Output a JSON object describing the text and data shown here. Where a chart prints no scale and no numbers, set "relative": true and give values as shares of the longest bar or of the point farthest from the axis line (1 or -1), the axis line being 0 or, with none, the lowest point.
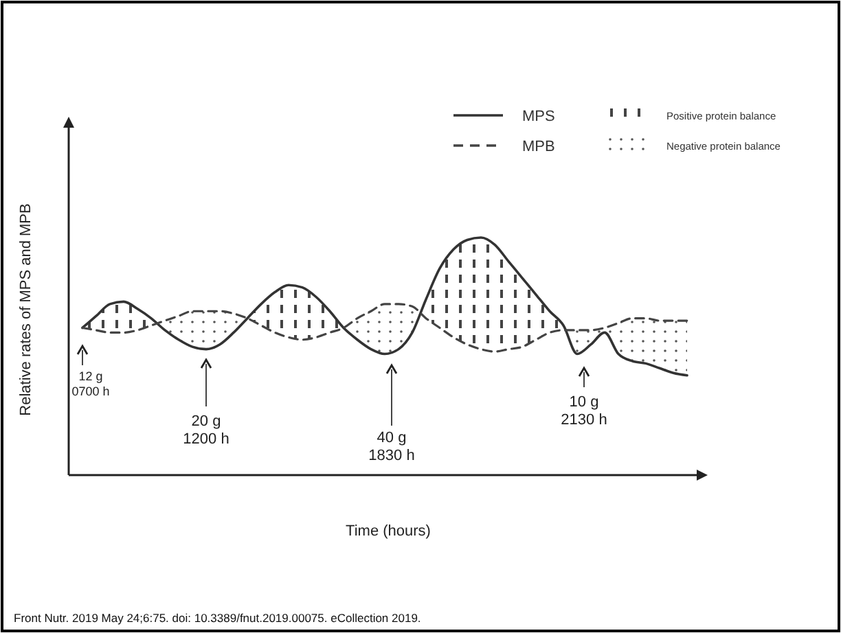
{
  "chart_data": {
    "type": "line",
    "relative": true,
    "xlabel": "Time (hours)",
    "ylabel": "Relative rates of MPS and MPB",
    "legend": "top right",
    "grid": false,
    "marker": "none",
    "categories": [
      null,
      null,
      null,
      null,
      null,
      null,
      null,
      null,
      null,
      null,
      null,
      null,
      null,
      null,
      null,
      null,
      null,
      null,
      null,
      null,
      null,
      null,
      null,
      null,
      null,
      null,
      null,
      null,
      null,
      null,
      null,
      null,
      null,
      null,
      null,
      null,
      null,
      null,
      null,
      null,
      null,
      null,
      null,
      null,
      null
    ],
    "series": [
      {
        "name": "MPS",
        "color": "#333333",
        "line_style": "solid",
        "values": [
          0.62,
          0.67,
          0.72,
          0.73,
          0.7,
          0.66,
          0.61,
          0.57,
          0.54,
          0.53,
          0.55,
          0.6,
          0.66,
          0.72,
          0.77,
          0.8,
          0.79,
          0.75,
          0.69,
          0.62,
          0.57,
          0.53,
          0.51,
          0.53,
          0.6,
          0.74,
          0.87,
          0.95,
          0.99,
          1,
          0.97,
          0.9,
          0.83,
          0.76,
          0.69,
          0.63,
          0.51,
          0.55,
          0.6,
          0.51,
          0.48,
          0.47,
          0.45,
          0.43,
          0.42
        ]
      },
      {
        "name": "MPB",
        "color": "#444444",
        "line_style": "dashed",
        "values": [
          0.62,
          0.61,
          0.6,
          0.6,
          0.61,
          0.63,
          0.65,
          0.67,
          0.69,
          0.69,
          0.69,
          0.68,
          0.66,
          0.63,
          0.6,
          0.58,
          0.57,
          0.58,
          0.6,
          0.62,
          0.66,
          0.69,
          0.72,
          0.72,
          0.71,
          0.66,
          0.62,
          0.58,
          0.55,
          0.53,
          0.52,
          0.53,
          0.54,
          0.57,
          0.6,
          0.61,
          0.61,
          0.61,
          0.62,
          0.64,
          0.66,
          0.66,
          0.65,
          0.65,
          0.65
        ]
      }
    ],
    "annotations": [
      "Positive protein balance",
      "Negative protein balance",
      "12 g\n0700 h",
      "20 g\n1200 h",
      "40 g\n1830 h",
      "10 g\n2130 h",
      "Front Nutr. 2019 May 24;6:75. doi: 10.3389/fnut.2019.00075. eCollection 2019."
    ]
  }
}
